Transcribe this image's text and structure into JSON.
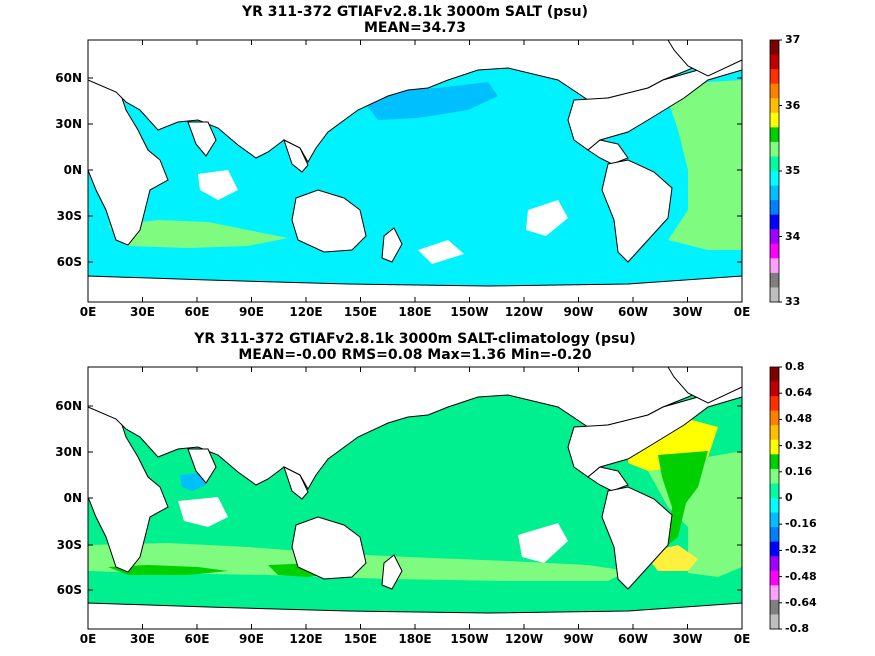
{
  "colorbar_colors": [
    "#7f0000",
    "#c00000",
    "#ff2f00",
    "#ff7f00",
    "#ffbf00",
    "#ffff00",
    "#00cf00",
    "#7fff7f",
    "#00ff9f",
    "#00ffff",
    "#00bfff",
    "#007fff",
    "#0000ff",
    "#9f00ff",
    "#ff00ff",
    "#ff9fff",
    "#7f7f7f",
    "#bfbfbf"
  ],
  "colors": {
    "land": "#ffffff",
    "coast": "#000000",
    "cyan": "#00f2ff",
    "blue": "#00bfff",
    "mint": "#00ef8f",
    "green": "#7ffb7f",
    "dgreen": "#00d000",
    "yellow": "#ffff00",
    "lyellow": "#ffef3f",
    "orange": "#e07000",
    "dred": "#c02000"
  },
  "panels": [
    {
      "title": "YR 311-372 GTIAFv2.8.1k 3000m SALT (psu)",
      "subtitle": "MEAN=34.73",
      "lat_ticks": [
        "60N",
        "30N",
        "0N",
        "30S",
        "60S"
      ],
      "lon_ticks": [
        "0E",
        "30E",
        "60E",
        "90E",
        "120E",
        "150E",
        "180E",
        "150W",
        "120W",
        "90W",
        "60W",
        "30W",
        "0E"
      ],
      "colorbar_labels": [
        "37",
        "36",
        "35",
        "34",
        "33"
      ],
      "field_color": "cyan"
    },
    {
      "title": "YR 311-372 GTIAFv2.8.1k 3000m SALT-climatology (psu)",
      "subtitle": "MEAN=-0.00   RMS=0.08   Max=1.36   Min=-0.20",
      "lat_ticks": [
        "60N",
        "30N",
        "0N",
        "30S",
        "60S"
      ],
      "lon_ticks": [
        "0E",
        "30E",
        "60E",
        "90E",
        "120E",
        "150E",
        "180E",
        "150W",
        "120W",
        "90W",
        "60W",
        "30W",
        "0E"
      ],
      "colorbar_labels": [
        "0.8",
        "0.64",
        "0.48",
        "0.32",
        "0.16",
        "0",
        "-0.16",
        "-0.32",
        "-0.48",
        "-0.64",
        "-0.8"
      ],
      "field_color": "mint"
    }
  ]
}
